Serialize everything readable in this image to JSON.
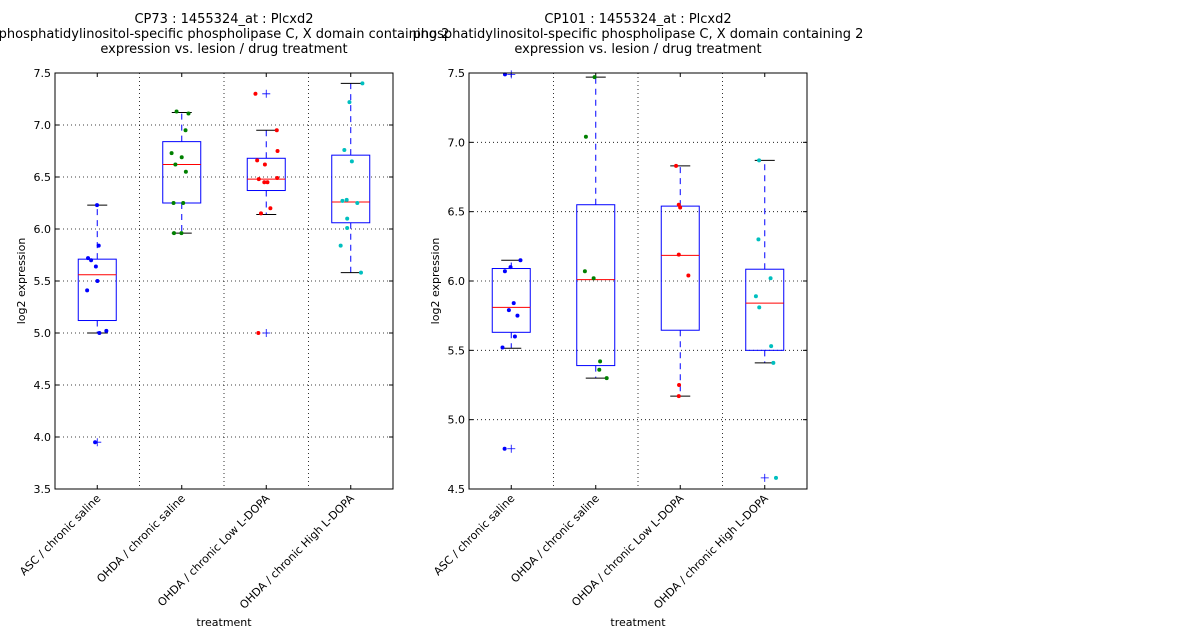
{
  "chart_data": [
    {
      "type": "box",
      "title": [
        "CP73 : 1455324_at : Plcxd2",
        "phosphatidylinositol-specific phospholipase C, X domain containing 2",
        "expression vs. lesion / drug treatment"
      ],
      "xlabel": "treatment",
      "ylabel": "log2 expression",
      "ylim": [
        3.5,
        7.5
      ],
      "yticks": [
        "3.5",
        "4.0",
        "4.5",
        "5.0",
        "5.5",
        "6.0",
        "6.5",
        "7.0",
        "7.5"
      ],
      "grid": true,
      "categories": [
        "ASC / chronic saline",
        "OHDA / chronic saline",
        "OHDA / chronic Low L-DOPA",
        "OHDA / chronic High L-DOPA"
      ],
      "colors": [
        "#0000ff",
        "#008000",
        "#ff0000",
        "#00bfbf"
      ],
      "boxes": [
        {
          "q1": 5.12,
          "median": 5.56,
          "q3": 5.71,
          "whisker_low": 5.0,
          "whisker_high": 6.23,
          "outliers": [
            3.95
          ]
        },
        {
          "q1": 6.25,
          "median": 6.62,
          "q3": 6.84,
          "whisker_low": 5.96,
          "whisker_high": 7.12,
          "outliers": []
        },
        {
          "q1": 6.37,
          "median": 6.48,
          "q3": 6.68,
          "whisker_low": 6.14,
          "whisker_high": 6.95,
          "outliers": [
            7.3,
            5.0
          ]
        },
        {
          "q1": 6.06,
          "median": 6.26,
          "q3": 6.71,
          "whisker_low": 5.58,
          "whisker_high": 7.4,
          "outliers": []
        }
      ],
      "points": [
        [
          6.23,
          5.84,
          5.72,
          5.7,
          5.64,
          5.5,
          5.41,
          5.02,
          5.0,
          3.95
        ],
        [
          7.13,
          7.11,
          6.95,
          6.73,
          6.69,
          6.62,
          6.55,
          6.25,
          6.25,
          5.96,
          5.96
        ],
        [
          7.3,
          6.95,
          6.75,
          6.66,
          6.62,
          6.49,
          6.48,
          6.45,
          6.45,
          6.2,
          6.15,
          5.0
        ],
        [
          7.4,
          7.22,
          6.76,
          6.65,
          6.28,
          6.27,
          6.25,
          6.1,
          6.01,
          5.84,
          5.58
        ]
      ]
    },
    {
      "type": "box",
      "title": [
        "CP101 : 1455324_at : Plcxd2",
        "phosphatidylinositol-specific phospholipase C, X domain containing 2",
        "expression vs. lesion / drug treatment"
      ],
      "xlabel": "treatment",
      "ylabel": "log2 expression",
      "ylim": [
        4.5,
        7.5
      ],
      "yticks": [
        "4.5",
        "5.0",
        "5.5",
        "6.0",
        "6.5",
        "7.0",
        "7.5"
      ],
      "grid": true,
      "categories": [
        "ASC / chronic saline",
        "OHDA / chronic saline",
        "OHDA / chronic Low L-DOPA",
        "OHDA / chronic High L-DOPA"
      ],
      "colors": [
        "#0000ff",
        "#008000",
        "#ff0000",
        "#00bfbf"
      ],
      "boxes": [
        {
          "q1": 5.63,
          "median": 5.81,
          "q3": 6.09,
          "whisker_low": 5.515,
          "whisker_high": 6.15,
          "outliers": [
            7.49,
            4.79
          ]
        },
        {
          "q1": 5.39,
          "median": 6.01,
          "q3": 6.55,
          "whisker_low": 5.3,
          "whisker_high": 7.47,
          "outliers": []
        },
        {
          "q1": 5.645,
          "median": 6.185,
          "q3": 6.54,
          "whisker_low": 5.17,
          "whisker_high": 6.83,
          "outliers": []
        },
        {
          "q1": 5.5,
          "median": 5.84,
          "q3": 6.085,
          "whisker_low": 5.41,
          "whisker_high": 6.87,
          "outliers": [
            4.58
          ]
        }
      ],
      "points": [
        [
          7.49,
          6.15,
          6.1,
          6.07,
          5.84,
          5.79,
          5.75,
          5.6,
          5.52,
          4.79
        ],
        [
          7.47,
          7.04,
          6.07,
          6.02,
          5.42,
          5.36,
          5.3
        ],
        [
          6.83,
          6.55,
          6.53,
          6.19,
          6.04,
          5.25,
          5.17
        ],
        [
          6.87,
          6.3,
          6.02,
          5.89,
          5.81,
          5.53,
          5.41,
          4.58
        ]
      ]
    }
  ]
}
